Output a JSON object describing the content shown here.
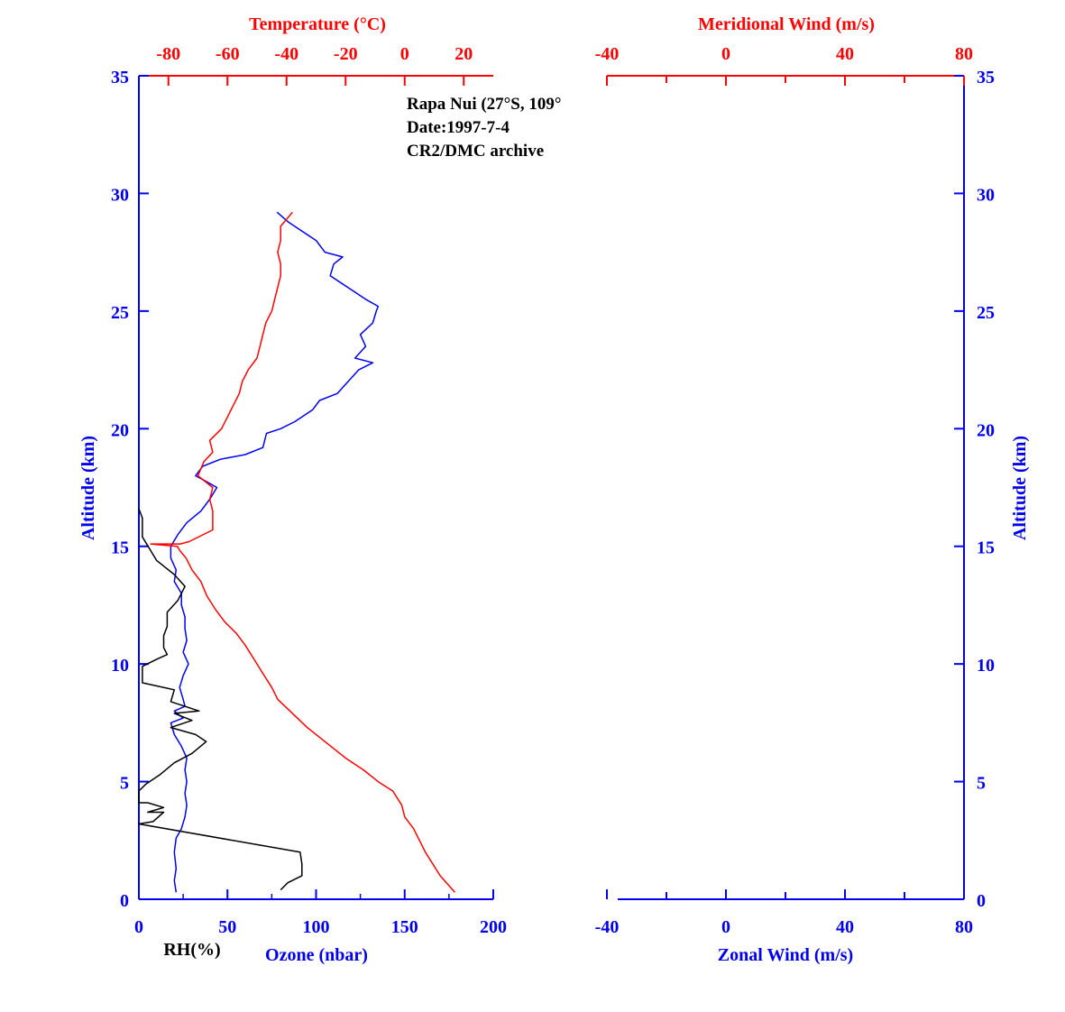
{
  "annotation": {
    "station": "Rapa Nui (27°S, 109°",
    "date": "Date:1997-7-4",
    "archive": "CR2/DMC archive"
  },
  "colors": {
    "ozone": "#0000ee",
    "temperature": "#ff0000",
    "rh": "#000000"
  },
  "chart_data": [
    {
      "type": "line",
      "panel": "left",
      "grid": false,
      "axes": {
        "left": {
          "label": "Altitude (km)",
          "range": [
            0,
            35
          ],
          "ticks": [
            "0",
            "5",
            "10",
            "15",
            "20",
            "25",
            "30",
            "35"
          ]
        },
        "bottom": {
          "label": "Ozone (nbar)",
          "range": [
            0,
            200
          ],
          "ticks": [
            "0",
            "50",
            "100",
            "150",
            "200"
          ]
        },
        "bottom_secondary": {
          "label": "RH(%)"
        },
        "top": {
          "label": "Temperature (°C)",
          "range": [
            -90,
            30
          ],
          "ticks": [
            "-80",
            "-60",
            "-40",
            "-20",
            "0",
            "20"
          ]
        }
      },
      "series": [
        {
          "name": "Ozone (nbar)",
          "axis": "bottom",
          "points": [
            [
              21,
              0.3
            ],
            [
              20,
              0.8
            ],
            [
              21,
              1.3
            ],
            [
              20,
              2
            ],
            [
              21,
              2.6
            ],
            [
              24,
              3
            ],
            [
              26,
              3.5
            ],
            [
              27,
              4
            ],
            [
              26,
              4.5
            ],
            [
              27,
              5
            ],
            [
              26,
              5.5
            ],
            [
              27,
              6
            ],
            [
              24,
              6.5
            ],
            [
              20,
              7
            ],
            [
              18,
              7.5
            ],
            [
              25,
              7.7
            ],
            [
              20,
              8
            ],
            [
              26,
              8.2
            ],
            [
              25,
              8.5
            ],
            [
              23,
              9
            ],
            [
              25,
              9.5
            ],
            [
              28,
              10
            ],
            [
              25,
              10.5
            ],
            [
              27,
              11
            ],
            [
              26,
              11.5
            ],
            [
              26,
              12
            ],
            [
              24,
              12.5
            ],
            [
              24,
              13
            ],
            [
              20,
              13.5
            ],
            [
              21,
              14
            ],
            [
              18,
              14.5
            ],
            [
              18,
              15
            ],
            [
              22,
              15.5
            ],
            [
              27,
              16
            ],
            [
              35,
              16.5
            ],
            [
              40,
              17
            ],
            [
              44,
              17.5
            ],
            [
              37,
              17.8
            ],
            [
              32,
              18
            ],
            [
              36,
              18.4
            ],
            [
              46,
              18.7
            ],
            [
              60,
              18.9
            ],
            [
              70,
              19.2
            ],
            [
              72,
              19.8
            ],
            [
              80,
              20
            ],
            [
              88,
              20.3
            ],
            [
              98,
              20.8
            ],
            [
              102,
              21.2
            ],
            [
              112,
              21.5
            ],
            [
              118,
              22
            ],
            [
              124,
              22.5
            ],
            [
              132,
              22.8
            ],
            [
              122,
              23
            ],
            [
              128,
              23.5
            ],
            [
              125,
              24
            ],
            [
              132,
              24.5
            ],
            [
              134,
              25
            ],
            [
              135,
              25.2
            ],
            [
              128,
              25.5
            ],
            [
              118,
              26
            ],
            [
              108,
              26.5
            ],
            [
              110,
              27
            ],
            [
              115,
              27.3
            ],
            [
              105,
              27.5
            ],
            [
              100,
              28
            ],
            [
              90,
              28.5
            ],
            [
              84,
              28.8
            ],
            [
              78,
              29.2
            ]
          ]
        },
        {
          "name": "Temperature (°C)",
          "axis": "top",
          "points": [
            [
              17,
              0.3
            ],
            [
              12,
              1
            ],
            [
              7,
              2
            ],
            [
              3,
              3
            ],
            [
              0,
              3.5
            ],
            [
              -1,
              4
            ],
            [
              -4,
              4.6
            ],
            [
              -9,
              5
            ],
            [
              -14,
              5.5
            ],
            [
              -20,
              6
            ],
            [
              -26,
              6.6
            ],
            [
              -33,
              7.3
            ],
            [
              -38,
              7.9
            ],
            [
              -43,
              8.5
            ],
            [
              -45,
              9
            ],
            [
              -48,
              9.6
            ],
            [
              -51,
              10.2
            ],
            [
              -54,
              10.8
            ],
            [
              -57,
              11.3
            ],
            [
              -61,
              11.8
            ],
            [
              -64,
              12.3
            ],
            [
              -67,
              12.9
            ],
            [
              -69,
              13.5
            ],
            [
              -72,
              14
            ],
            [
              -74,
              14.5
            ],
            [
              -76,
              14.8
            ],
            [
              -77,
              15
            ],
            [
              -86,
              15.1
            ],
            [
              -76,
              15.1
            ],
            [
              -73,
              15.2
            ],
            [
              -65,
              15.7
            ],
            [
              -65,
              16.5
            ],
            [
              -66,
              17
            ],
            [
              -65,
              17.5
            ],
            [
              -70,
              18
            ],
            [
              -68,
              18.6
            ],
            [
              -65,
              19
            ],
            [
              -66,
              19.5
            ],
            [
              -62,
              20
            ],
            [
              -60,
              20.5
            ],
            [
              -58,
              21
            ],
            [
              -56,
              21.5
            ],
            [
              -55,
              22
            ],
            [
              -53,
              22.5
            ],
            [
              -50,
              23
            ],
            [
              -49,
              23.5
            ],
            [
              -48,
              24
            ],
            [
              -47,
              24.5
            ],
            [
              -45,
              25
            ],
            [
              -44,
              25.5
            ],
            [
              -43,
              26
            ],
            [
              -42,
              26.5
            ],
            [
              -42,
              27
            ],
            [
              -43,
              27.5
            ],
            [
              -42,
              28
            ],
            [
              -42,
              28.6
            ],
            [
              -38,
              29.2
            ]
          ]
        },
        {
          "name": "RH(%)",
          "axis": "bottom",
          "points": [
            [
              80,
              0.4
            ],
            [
              84,
              0.7
            ],
            [
              92,
              1
            ],
            [
              92,
              1.5
            ],
            [
              91,
              2
            ],
            [
              0,
              3.2
            ],
            [
              8,
              3.3
            ],
            [
              14,
              3.7
            ],
            [
              5,
              3.7
            ],
            [
              14,
              3.9
            ],
            [
              5,
              4.1
            ],
            [
              0,
              4.1
            ],
            [
              0,
              4.6
            ],
            [
              4,
              4.9
            ],
            [
              12,
              5.3
            ],
            [
              20,
              5.8
            ],
            [
              30,
              6.2
            ],
            [
              38,
              6.7
            ],
            [
              32,
              7
            ],
            [
              18,
              7.3
            ],
            [
              30,
              7.6
            ],
            [
              20,
              7.9
            ],
            [
              34,
              8
            ],
            [
              18,
              8.4
            ],
            [
              20,
              8.9
            ],
            [
              2,
              9.2
            ],
            [
              2,
              9.9
            ],
            [
              10,
              10.2
            ],
            [
              16,
              10.4
            ],
            [
              14,
              10.7
            ],
            [
              14,
              11.2
            ],
            [
              16,
              11.6
            ],
            [
              16,
              12.2
            ],
            [
              22,
              12.7
            ],
            [
              26,
              13.3
            ],
            [
              20,
              13.8
            ],
            [
              10,
              14.4
            ],
            [
              2,
              15.4
            ],
            [
              2,
              16.2
            ],
            [
              0,
              16.6
            ]
          ]
        }
      ]
    },
    {
      "type": "line",
      "panel": "right",
      "grid": false,
      "axes": {
        "right": {
          "label": "Altitude (km)",
          "range": [
            0,
            35
          ],
          "ticks": [
            "0",
            "5",
            "10",
            "15",
            "20",
            "25",
            "30",
            "35"
          ]
        },
        "bottom": {
          "label": "Zonal Wind (m/s)",
          "range": [
            -40,
            80
          ],
          "ticks": [
            "-40",
            "0",
            "40",
            "80"
          ]
        },
        "top": {
          "label": "Meridional Wind (m/s)",
          "range": [
            -40,
            80
          ],
          "ticks": [
            "-40",
            "0",
            "40",
            "80"
          ]
        }
      },
      "series": []
    }
  ]
}
